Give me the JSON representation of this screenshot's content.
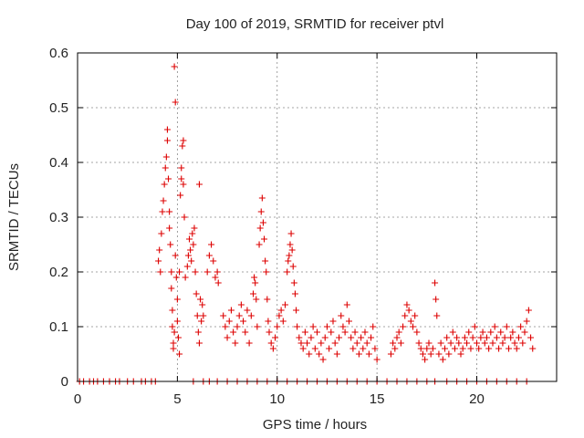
{
  "chart_data": {
    "type": "scatter",
    "title": "Day 100 of 2019, SRMTID for receiver ptvl",
    "xlabel": "GPS time / hours",
    "ylabel": "SRMTID / TECUs",
    "xlim": [
      0,
      24
    ],
    "ylim": [
      0,
      0.6
    ],
    "xticks": [
      0,
      5,
      10,
      15,
      20
    ],
    "xtick_labels": [
      "0",
      "5",
      "10",
      "15",
      "20"
    ],
    "yticks": [
      0,
      0.1,
      0.2,
      0.3,
      0.4,
      0.5,
      0.6
    ],
    "ytick_labels": [
      "0",
      "0.1",
      "0.2",
      "0.3",
      "0.4",
      "0.5",
      "0.6"
    ],
    "grid": true,
    "marker": "+",
    "marker_color": "#dd0000",
    "series": [
      {
        "name": "SRMTID",
        "points": [
          [
            0.1,
            0
          ],
          [
            0.3,
            0
          ],
          [
            0.6,
            0
          ],
          [
            0.8,
            0
          ],
          [
            1.0,
            0
          ],
          [
            1.3,
            0
          ],
          [
            1.6,
            0
          ],
          [
            1.9,
            0
          ],
          [
            2.1,
            0
          ],
          [
            2.5,
            0
          ],
          [
            2.8,
            0
          ],
          [
            3.2,
            0
          ],
          [
            3.4,
            0
          ],
          [
            3.7,
            0
          ],
          [
            3.9,
            0
          ],
          [
            4.05,
            0.22
          ],
          [
            4.1,
            0.24
          ],
          [
            4.15,
            0.2
          ],
          [
            4.2,
            0.27
          ],
          [
            4.25,
            0.31
          ],
          [
            4.3,
            0.33
          ],
          [
            4.35,
            0.36
          ],
          [
            4.4,
            0.39
          ],
          [
            4.45,
            0.41
          ],
          [
            4.5,
            0.46
          ],
          [
            4.5,
            0.44
          ],
          [
            4.55,
            0.37
          ],
          [
            4.6,
            0.31
          ],
          [
            4.6,
            0.28
          ],
          [
            4.65,
            0.25
          ],
          [
            4.7,
            0.2
          ],
          [
            4.7,
            0.17
          ],
          [
            4.75,
            0.13
          ],
          [
            4.75,
            0.1
          ],
          [
            4.8,
            0.07
          ],
          [
            4.8,
            0.06
          ],
          [
            4.85,
            0.09
          ],
          [
            4.85,
            0.575
          ],
          [
            4.9,
            0.51
          ],
          [
            4.9,
            0.23
          ],
          [
            4.95,
            0.19
          ],
          [
            5.0,
            0.15
          ],
          [
            5.0,
            0.11
          ],
          [
            5.05,
            0.08
          ],
          [
            5.1,
            0.2
          ],
          [
            5.1,
            0.05
          ],
          [
            5.15,
            0.34
          ],
          [
            5.2,
            0.37
          ],
          [
            5.2,
            0.39
          ],
          [
            5.25,
            0.43
          ],
          [
            5.3,
            0.44
          ],
          [
            5.3,
            0.36
          ],
          [
            5.35,
            0.3
          ],
          [
            5.4,
            0.19
          ],
          [
            5.5,
            0.21
          ],
          [
            5.55,
            0.23
          ],
          [
            5.6,
            0.26
          ],
          [
            5.65,
            0.24
          ],
          [
            5.7,
            0.22
          ],
          [
            5.75,
            0.27
          ],
          [
            5.8,
            0.25
          ],
          [
            5.85,
            0.28
          ],
          [
            5.9,
            0.2
          ],
          [
            5.95,
            0.16
          ],
          [
            6.0,
            0.12
          ],
          [
            6.05,
            0.09
          ],
          [
            6.1,
            0.07
          ],
          [
            6.1,
            0.36
          ],
          [
            6.15,
            0.15
          ],
          [
            6.2,
            0.11
          ],
          [
            6.25,
            0.14
          ],
          [
            6.3,
            0.12
          ],
          [
            6.5,
            0.2
          ],
          [
            6.6,
            0.23
          ],
          [
            6.7,
            0.25
          ],
          [
            6.8,
            0.22
          ],
          [
            6.9,
            0.19
          ],
          [
            7.0,
            0.2
          ],
          [
            7.05,
            0.18
          ],
          [
            5.8,
            0
          ],
          [
            6.3,
            0
          ],
          [
            6.6,
            0
          ],
          [
            7.0,
            0
          ],
          [
            7.5,
            0
          ],
          [
            8.0,
            0
          ],
          [
            8.5,
            0
          ],
          [
            9.0,
            0
          ],
          [
            9.5,
            0
          ],
          [
            10.0,
            0
          ],
          [
            10.5,
            0
          ],
          [
            11.0,
            0
          ],
          [
            11.5,
            0
          ],
          [
            12.0,
            0
          ],
          [
            12.5,
            0
          ],
          [
            13.0,
            0
          ],
          [
            13.5,
            0
          ],
          [
            14.0,
            0
          ],
          [
            14.5,
            0
          ],
          [
            15.0,
            0
          ],
          [
            15.5,
            0
          ],
          [
            16.0,
            0
          ],
          [
            16.5,
            0
          ],
          [
            17.0,
            0
          ],
          [
            17.5,
            0
          ],
          [
            17.9,
            0
          ],
          [
            18.5,
            0
          ],
          [
            19.0,
            0
          ],
          [
            19.5,
            0
          ],
          [
            20.0,
            0
          ],
          [
            20.5,
            0
          ],
          [
            21.0,
            0
          ],
          [
            21.5,
            0
          ],
          [
            22.0,
            0
          ],
          [
            22.5,
            0
          ],
          [
            7.3,
            0.12
          ],
          [
            7.4,
            0.1
          ],
          [
            7.5,
            0.08
          ],
          [
            7.6,
            0.11
          ],
          [
            7.7,
            0.13
          ],
          [
            7.8,
            0.09
          ],
          [
            7.9,
            0.07
          ],
          [
            8.0,
            0.1
          ],
          [
            8.1,
            0.12
          ],
          [
            8.2,
            0.14
          ],
          [
            8.3,
            0.11
          ],
          [
            8.4,
            0.09
          ],
          [
            8.5,
            0.13
          ],
          [
            8.6,
            0.07
          ],
          [
            8.7,
            0.12
          ],
          [
            8.8,
            0.16
          ],
          [
            8.85,
            0.19
          ],
          [
            8.9,
            0.18
          ],
          [
            8.95,
            0.15
          ],
          [
            9.0,
            0.1
          ],
          [
            9.1,
            0.25
          ],
          [
            9.15,
            0.28
          ],
          [
            9.2,
            0.31
          ],
          [
            9.25,
            0.335
          ],
          [
            9.3,
            0.29
          ],
          [
            9.35,
            0.26
          ],
          [
            9.4,
            0.22
          ],
          [
            9.45,
            0.2
          ],
          [
            9.5,
            0.15
          ],
          [
            9.55,
            0.11
          ],
          [
            9.6,
            0.09
          ],
          [
            9.7,
            0.07
          ],
          [
            9.8,
            0.06
          ],
          [
            9.9,
            0.08
          ],
          [
            10.0,
            0.1
          ],
          [
            10.1,
            0.12
          ],
          [
            10.2,
            0.13
          ],
          [
            10.3,
            0.11
          ],
          [
            10.4,
            0.14
          ],
          [
            10.5,
            0.2
          ],
          [
            10.55,
            0.22
          ],
          [
            10.6,
            0.23
          ],
          [
            10.65,
            0.25
          ],
          [
            10.7,
            0.27
          ],
          [
            10.75,
            0.24
          ],
          [
            10.8,
            0.21
          ],
          [
            10.85,
            0.18
          ],
          [
            10.9,
            0.16
          ],
          [
            10.95,
            0.13
          ],
          [
            11.0,
            0.1
          ],
          [
            11.1,
            0.08
          ],
          [
            11.2,
            0.07
          ],
          [
            11.3,
            0.06
          ],
          [
            11.4,
            0.09
          ],
          [
            11.5,
            0.07
          ],
          [
            11.6,
            0.05
          ],
          [
            11.7,
            0.08
          ],
          [
            11.8,
            0.1
          ],
          [
            11.9,
            0.06
          ],
          [
            12.0,
            0.09
          ],
          [
            12.1,
            0.05
          ],
          [
            12.2,
            0.07
          ],
          [
            12.3,
            0.04
          ],
          [
            12.4,
            0.08
          ],
          [
            12.5,
            0.1
          ],
          [
            12.6,
            0.06
          ],
          [
            12.7,
            0.09
          ],
          [
            12.8,
            0.11
          ],
          [
            12.9,
            0.07
          ],
          [
            13.0,
            0.05
          ],
          [
            13.1,
            0.08
          ],
          [
            13.2,
            0.12
          ],
          [
            13.3,
            0.1
          ],
          [
            13.4,
            0.09
          ],
          [
            13.5,
            0.14
          ],
          [
            13.6,
            0.11
          ],
          [
            13.7,
            0.08
          ],
          [
            13.8,
            0.06
          ],
          [
            13.9,
            0.09
          ],
          [
            14.0,
            0.07
          ],
          [
            14.1,
            0.05
          ],
          [
            14.2,
            0.08
          ],
          [
            14.3,
            0.06
          ],
          [
            14.4,
            0.09
          ],
          [
            14.5,
            0.07
          ],
          [
            14.6,
            0.05
          ],
          [
            14.7,
            0.08
          ],
          [
            14.8,
            0.1
          ],
          [
            14.9,
            0.06
          ],
          [
            15.0,
            0.04
          ],
          [
            15.7,
            0.05
          ],
          [
            15.8,
            0.07
          ],
          [
            15.9,
            0.06
          ],
          [
            16.0,
            0.08
          ],
          [
            16.1,
            0.09
          ],
          [
            16.2,
            0.07
          ],
          [
            16.3,
            0.1
          ],
          [
            16.4,
            0.12
          ],
          [
            16.5,
            0.14
          ],
          [
            16.6,
            0.13
          ],
          [
            16.7,
            0.11
          ],
          [
            16.8,
            0.1
          ],
          [
            16.9,
            0.12
          ],
          [
            17.0,
            0.09
          ],
          [
            17.1,
            0.07
          ],
          [
            17.2,
            0.06
          ],
          [
            17.3,
            0.05
          ],
          [
            17.4,
            0.04
          ],
          [
            17.5,
            0.06
          ],
          [
            17.6,
            0.07
          ],
          [
            17.7,
            0.05
          ],
          [
            17.8,
            0.06
          ],
          [
            17.9,
            0.18
          ],
          [
            17.95,
            0.15
          ],
          [
            18.0,
            0.12
          ],
          [
            18.1,
            0.05
          ],
          [
            18.2,
            0.07
          ],
          [
            18.3,
            0.04
          ],
          [
            18.4,
            0.06
          ],
          [
            18.5,
            0.08
          ],
          [
            18.6,
            0.05
          ],
          [
            18.7,
            0.07
          ],
          [
            18.8,
            0.09
          ],
          [
            18.9,
            0.06
          ],
          [
            19.0,
            0.08
          ],
          [
            19.1,
            0.07
          ],
          [
            19.2,
            0.05
          ],
          [
            19.3,
            0.06
          ],
          [
            19.4,
            0.08
          ],
          [
            19.5,
            0.07
          ],
          [
            19.6,
            0.09
          ],
          [
            19.7,
            0.06
          ],
          [
            19.8,
            0.08
          ],
          [
            19.9,
            0.1
          ],
          [
            20.0,
            0.07
          ],
          [
            20.1,
            0.06
          ],
          [
            20.2,
            0.08
          ],
          [
            20.3,
            0.09
          ],
          [
            20.4,
            0.07
          ],
          [
            20.5,
            0.08
          ],
          [
            20.6,
            0.06
          ],
          [
            20.7,
            0.09
          ],
          [
            20.8,
            0.07
          ],
          [
            20.9,
            0.1
          ],
          [
            21.0,
            0.08
          ],
          [
            21.1,
            0.06
          ],
          [
            21.2,
            0.09
          ],
          [
            21.3,
            0.07
          ],
          [
            21.4,
            0.08
          ],
          [
            21.5,
            0.1
          ],
          [
            21.6,
            0.06
          ],
          [
            21.7,
            0.08
          ],
          [
            21.8,
            0.09
          ],
          [
            21.9,
            0.07
          ],
          [
            22.0,
            0.06
          ],
          [
            22.1,
            0.08
          ],
          [
            22.2,
            0.1
          ],
          [
            22.3,
            0.07
          ],
          [
            22.4,
            0.09
          ],
          [
            22.5,
            0.11
          ],
          [
            22.6,
            0.13
          ],
          [
            22.7,
            0.08
          ],
          [
            22.8,
            0.06
          ]
        ]
      }
    ]
  }
}
